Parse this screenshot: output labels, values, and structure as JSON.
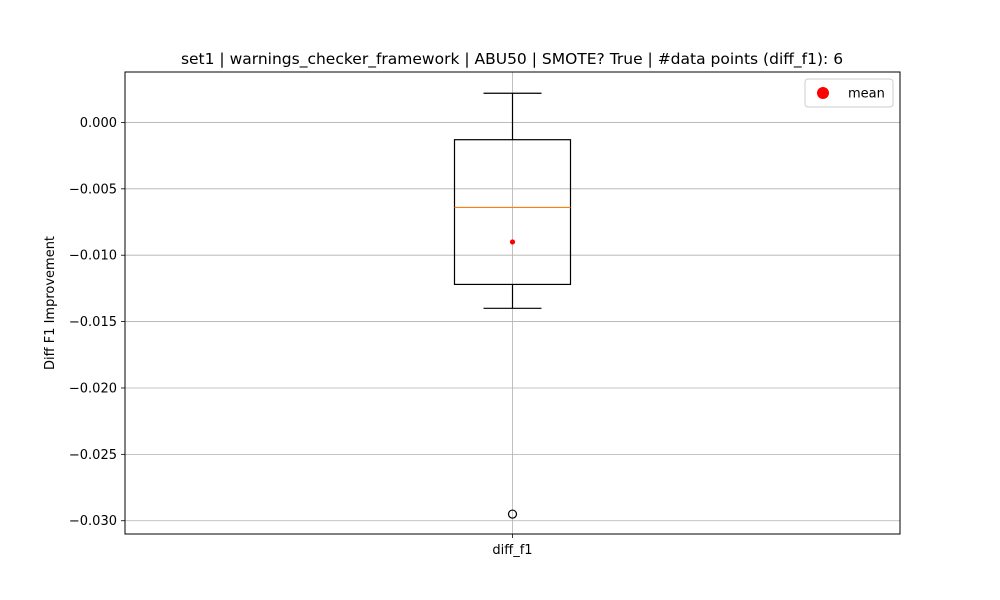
{
  "chart_data": {
    "type": "box",
    "title": "set1 | warnings_checker_framework | ABU50 | SMOTE? True | #data points (diff_f1): 6",
    "xlabel": "",
    "ylabel": "Diff F1 Improvement",
    "categories": [
      "diff_f1"
    ],
    "ylim": [
      -0.031,
      0.0038
    ],
    "yticks": [
      0.0,
      -0.005,
      -0.01,
      -0.015,
      -0.02,
      -0.025,
      -0.03
    ],
    "ytick_labels": [
      "0.000",
      "−0.005",
      "−0.010",
      "−0.015",
      "−0.020",
      "−0.025",
      "−0.030"
    ],
    "grid": true,
    "legend": {
      "position": "top-right",
      "entries": [
        {
          "label": "mean",
          "color": "#ff0000",
          "marker": "circle"
        }
      ]
    },
    "boxes": [
      {
        "category": "diff_f1",
        "whisker_high": 0.0022,
        "q3": -0.0013,
        "median": -0.0064,
        "q1": -0.0122,
        "whisker_low": -0.014,
        "mean": -0.009,
        "outliers": [
          -0.0295
        ]
      }
    ],
    "colors": {
      "box": "#000000",
      "median": "#ff7f0e",
      "mean": "#ff0000",
      "grid": "#b0b0b0"
    }
  }
}
